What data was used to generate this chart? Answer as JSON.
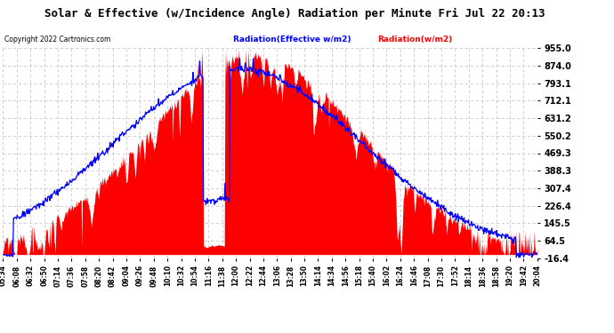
{
  "title": "Solar & Effective (w/Incidence Angle) Radiation per Minute Fri Jul 22 20:13",
  "copyright": "Copyright 2022 Cartronics.com",
  "legend_blue": "Radiation(Effective w/m2)",
  "legend_red": "Radiation(w/m2)",
  "yticks": [
    955.0,
    874.0,
    793.1,
    712.1,
    631.2,
    550.2,
    469.3,
    388.3,
    307.4,
    226.4,
    145.5,
    64.5,
    -16.4
  ],
  "ymin": -16.4,
  "ymax": 955.0,
  "background_color": "#ffffff",
  "plot_bg_color": "#ffffff",
  "grid_color": "#c8c8c8",
  "red_color": "#ff0000",
  "blue_color": "#0000ff",
  "title_color": "#000000",
  "copyright_color": "#000000",
  "legend_blue_color": "#0000ff",
  "legend_red_color": "#ff0000",
  "xtick_labels": [
    "05:34",
    "06:08",
    "06:32",
    "06:50",
    "07:14",
    "07:36",
    "07:58",
    "08:20",
    "08:42",
    "09:04",
    "09:26",
    "09:48",
    "10:10",
    "10:32",
    "10:54",
    "11:16",
    "11:38",
    "12:00",
    "12:22",
    "12:44",
    "13:06",
    "13:28",
    "13:50",
    "14:14",
    "14:34",
    "14:56",
    "15:18",
    "15:40",
    "16:02",
    "16:24",
    "16:46",
    "17:08",
    "17:30",
    "17:52",
    "18:14",
    "18:36",
    "18:58",
    "19:20",
    "19:42",
    "20:04"
  ]
}
